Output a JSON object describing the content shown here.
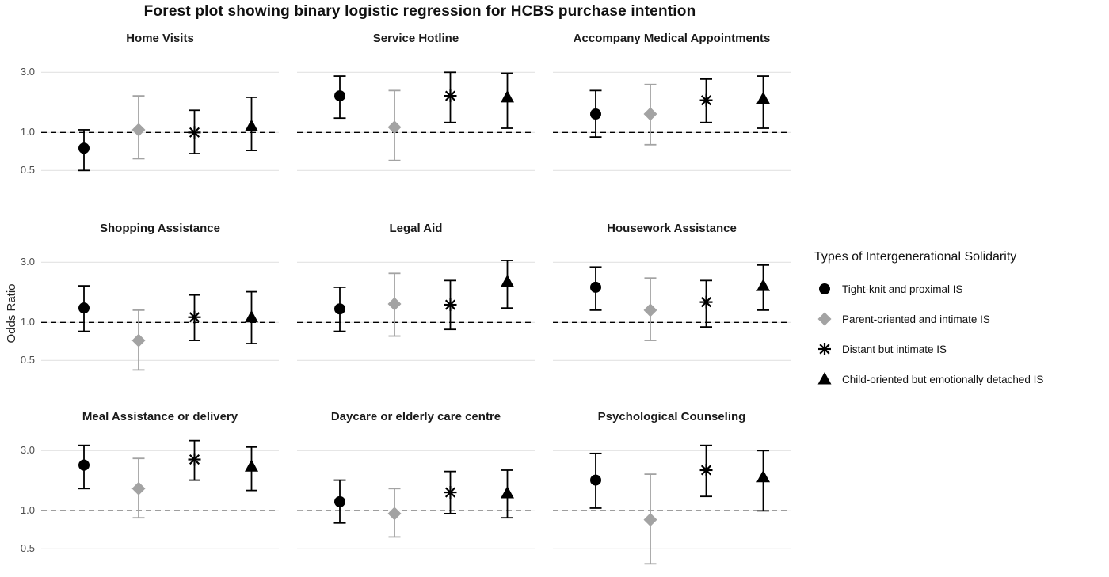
{
  "title": "Forest plot showing binary logistic regression for HCBS purchase intention",
  "ylabel": "Odds Ratio",
  "legend": {
    "title": "Types of Intergenerational Solidarity"
  },
  "chart_data": {
    "type": "forest",
    "scale": "log",
    "title": "Forest plot showing binary logistic regression for HCBS purchase intention",
    "ylabel": "Odds Ratio",
    "ylim": [
      0.35,
      4.2
    ],
    "yticks": [
      3.0,
      1.0,
      0.5
    ],
    "reference_line": 1.0,
    "grid": "horizontal-major",
    "legend_position": "right",
    "series": [
      {
        "name": "Tight-knit and proximal IS",
        "marker": "circle",
        "color": "#000000"
      },
      {
        "name": "Parent-oriented and intimate IS",
        "marker": "diamond",
        "color": "#a3a3a3"
      },
      {
        "name": "Distant but intimate IS",
        "marker": "asterisk",
        "color": "#000000"
      },
      {
        "name": "Child-oriented but emotionally detached IS",
        "marker": "triangle",
        "color": "#000000"
      }
    ],
    "panels": [
      {
        "title": "Home Visits",
        "estimates": [
          {
            "or": 0.75,
            "ci_low": 0.5,
            "ci_high": 1.05
          },
          {
            "or": 1.05,
            "ci_low": 0.62,
            "ci_high": 1.95
          },
          {
            "or": 1.0,
            "ci_low": 0.68,
            "ci_high": 1.5
          },
          {
            "or": 1.12,
            "ci_low": 0.72,
            "ci_high": 1.9
          }
        ]
      },
      {
        "title": "Service Hotline",
        "estimates": [
          {
            "or": 1.95,
            "ci_low": 1.3,
            "ci_high": 2.8
          },
          {
            "or": 1.1,
            "ci_low": 0.6,
            "ci_high": 2.15
          },
          {
            "or": 1.95,
            "ci_low": 1.2,
            "ci_high": 3.0
          },
          {
            "or": 1.9,
            "ci_low": 1.08,
            "ci_high": 2.95
          }
        ]
      },
      {
        "title": "Accompany Medical Appointments",
        "estimates": [
          {
            "or": 1.4,
            "ci_low": 0.92,
            "ci_high": 2.15
          },
          {
            "or": 1.4,
            "ci_low": 0.8,
            "ci_high": 2.4
          },
          {
            "or": 1.8,
            "ci_low": 1.2,
            "ci_high": 2.65
          },
          {
            "or": 1.85,
            "ci_low": 1.08,
            "ci_high": 2.8
          }
        ]
      },
      {
        "title": "Shopping Assistance",
        "estimates": [
          {
            "or": 1.3,
            "ci_low": 0.85,
            "ci_high": 1.95
          },
          {
            "or": 0.72,
            "ci_low": 0.42,
            "ci_high": 1.25
          },
          {
            "or": 1.1,
            "ci_low": 0.72,
            "ci_high": 1.65
          },
          {
            "or": 1.1,
            "ci_low": 0.68,
            "ci_high": 1.75
          }
        ]
      },
      {
        "title": "Legal Aid",
        "estimates": [
          {
            "or": 1.28,
            "ci_low": 0.85,
            "ci_high": 1.9
          },
          {
            "or": 1.4,
            "ci_low": 0.78,
            "ci_high": 2.45
          },
          {
            "or": 1.38,
            "ci_low": 0.88,
            "ci_high": 2.15
          },
          {
            "or": 2.1,
            "ci_low": 1.3,
            "ci_high": 3.1
          }
        ]
      },
      {
        "title": "Housework Assistance",
        "estimates": [
          {
            "or": 1.9,
            "ci_low": 1.25,
            "ci_high": 2.75
          },
          {
            "or": 1.25,
            "ci_low": 0.72,
            "ci_high": 2.25
          },
          {
            "or": 1.45,
            "ci_low": 0.92,
            "ci_high": 2.15
          },
          {
            "or": 1.95,
            "ci_low": 1.25,
            "ci_high": 2.85
          }
        ]
      },
      {
        "title": "Meal Assistance or delivery",
        "estimates": [
          {
            "or": 2.3,
            "ci_low": 1.5,
            "ci_high": 3.3
          },
          {
            "or": 1.5,
            "ci_low": 0.88,
            "ci_high": 2.6
          },
          {
            "or": 2.55,
            "ci_low": 1.75,
            "ci_high": 3.6
          },
          {
            "or": 2.25,
            "ci_low": 1.45,
            "ci_high": 3.2
          }
        ]
      },
      {
        "title": "Daycare or elderly care centre",
        "estimates": [
          {
            "or": 1.18,
            "ci_low": 0.8,
            "ci_high": 1.75
          },
          {
            "or": 0.95,
            "ci_low": 0.62,
            "ci_high": 1.5
          },
          {
            "or": 1.4,
            "ci_low": 0.95,
            "ci_high": 2.05
          },
          {
            "or": 1.38,
            "ci_low": 0.88,
            "ci_high": 2.1
          }
        ]
      },
      {
        "title": "Psychological Counseling",
        "estimates": [
          {
            "or": 1.75,
            "ci_low": 1.05,
            "ci_high": 2.85
          },
          {
            "or": 0.85,
            "ci_low": 0.38,
            "ci_high": 1.95
          },
          {
            "or": 2.1,
            "ci_low": 1.3,
            "ci_high": 3.3
          },
          {
            "or": 1.85,
            "ci_low": 1.0,
            "ci_high": 3.0
          }
        ]
      }
    ]
  },
  "colors": {
    "grid": "#e2e2e2",
    "reference_line": "#000000",
    "gray_series": "#a3a3a3"
  }
}
